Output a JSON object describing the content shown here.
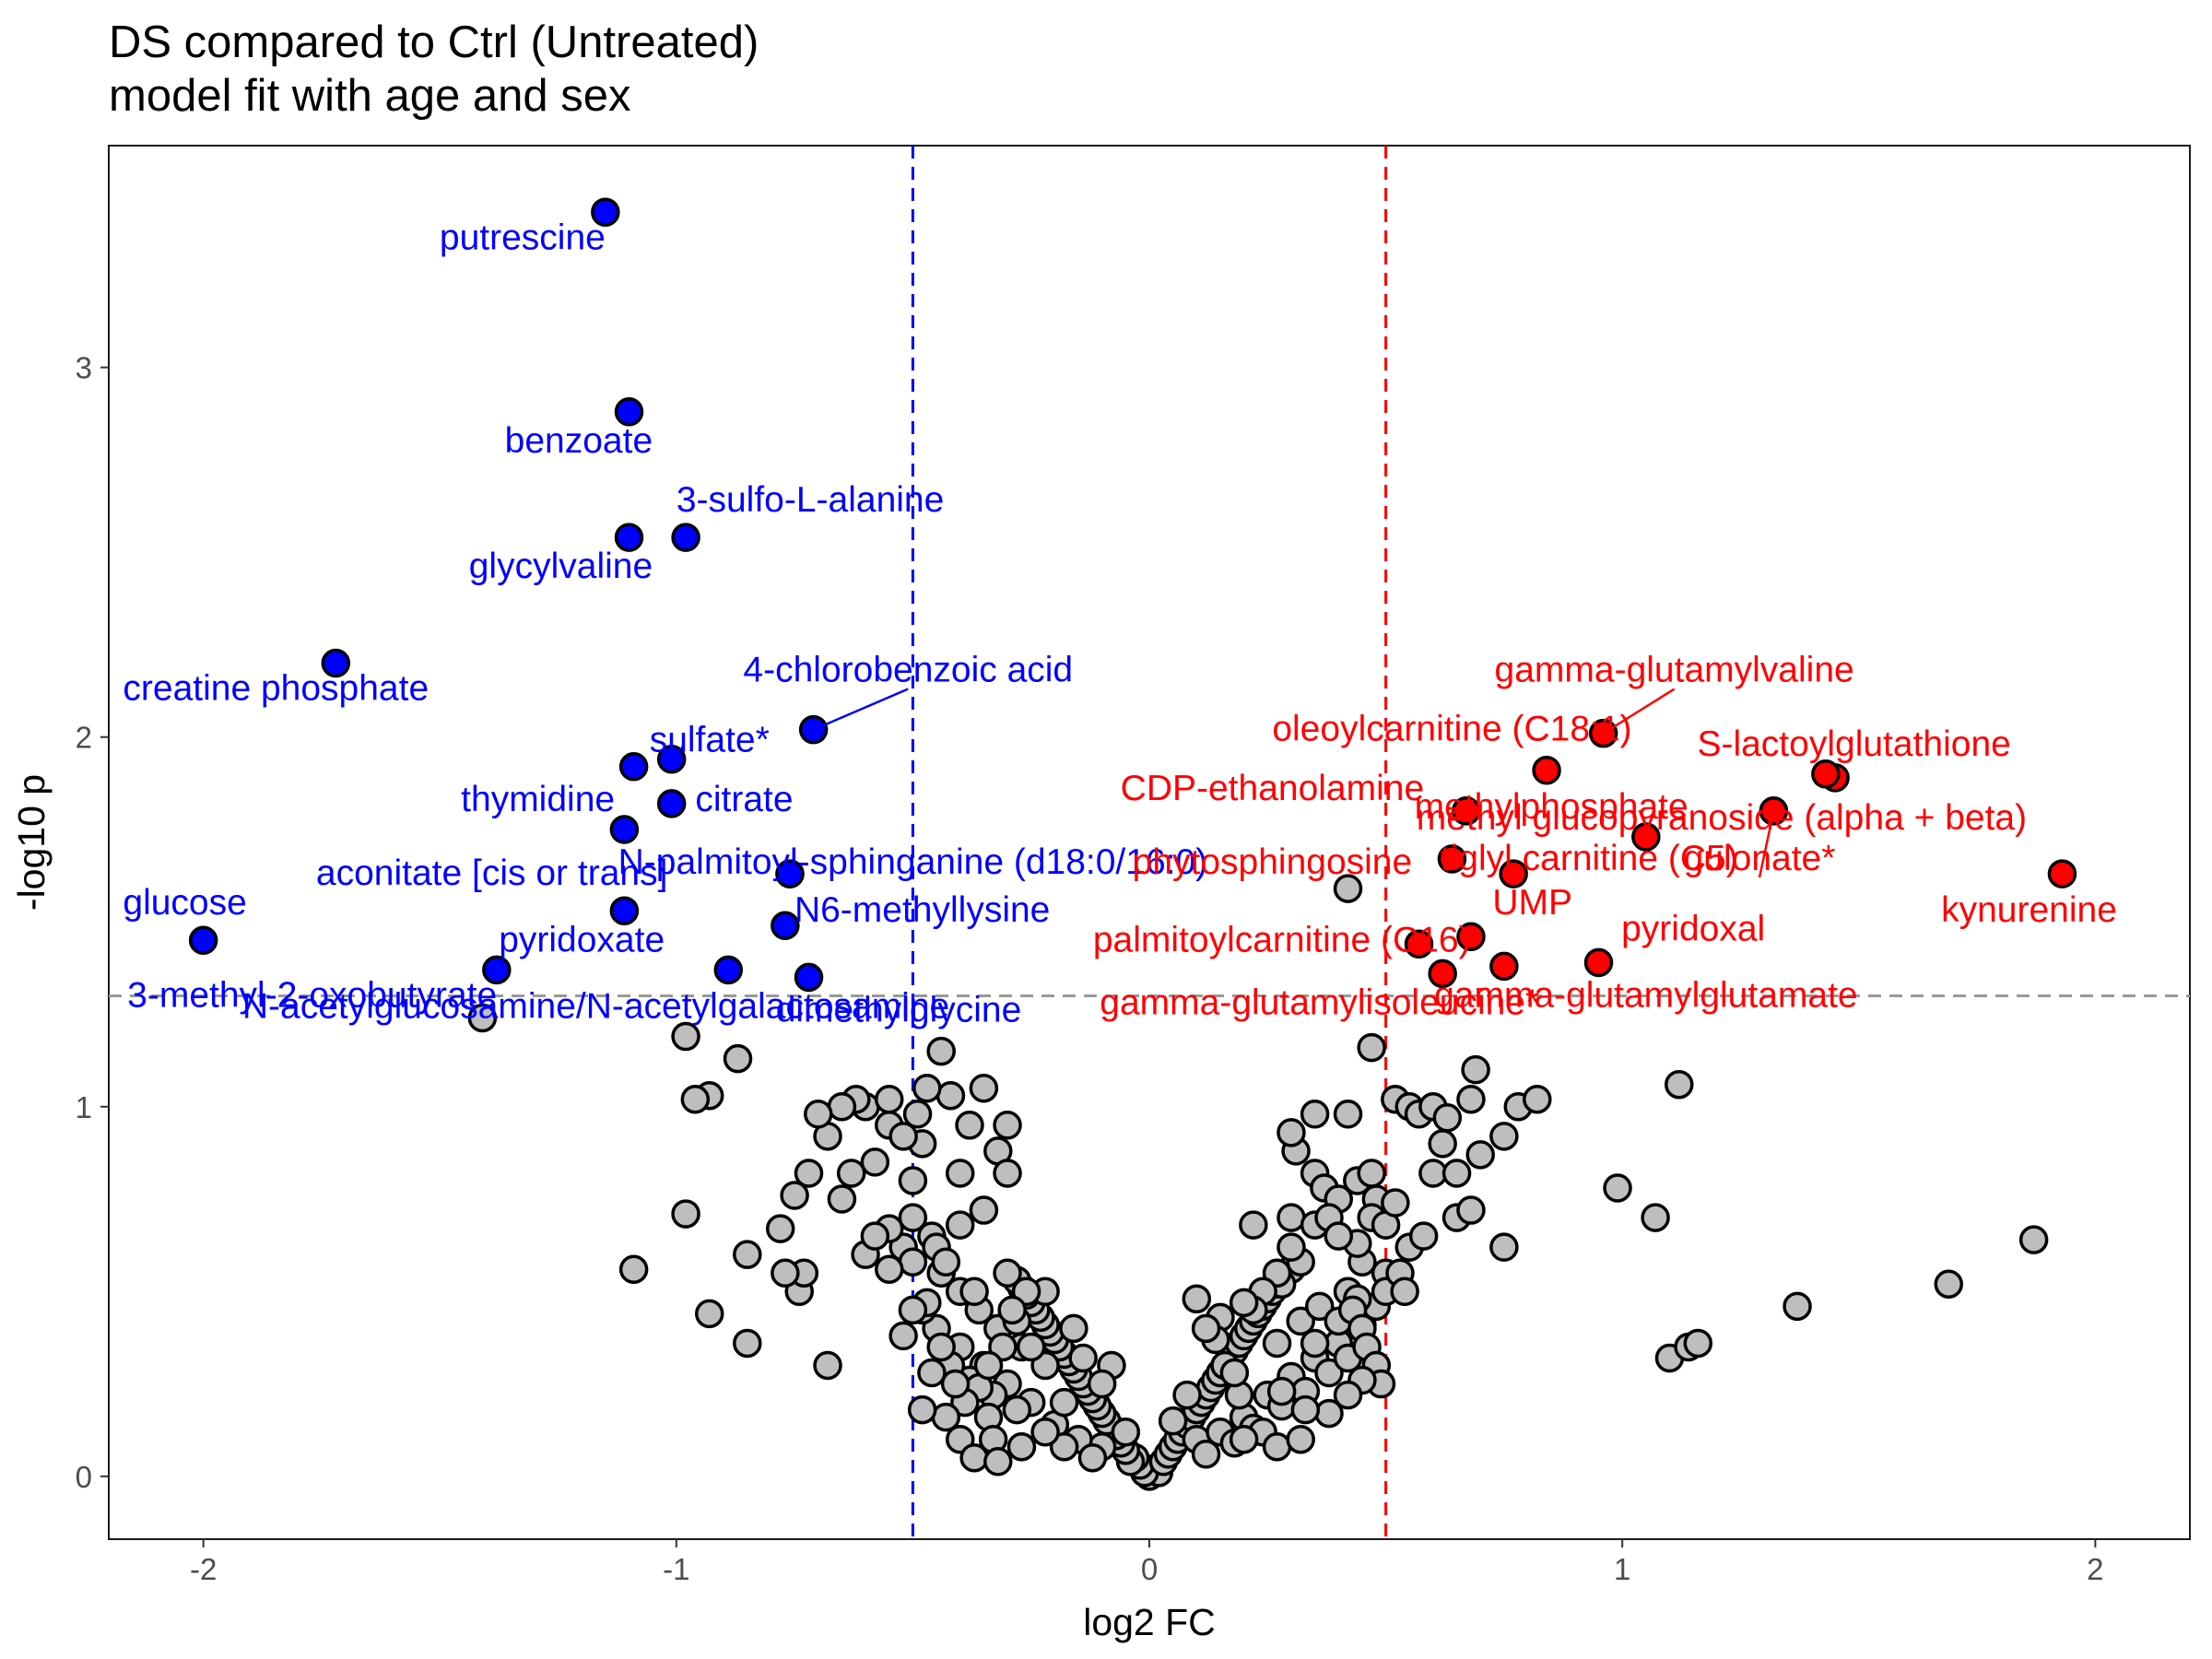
{
  "chart_data": {
    "type": "scatter",
    "title": "DS compared to Ctrl (Untreated)",
    "subtitle": "model fit with age and sex",
    "xlabel": "log2 FC",
    "ylabel": "-log10 p",
    "xlim": [
      -2.2,
      2.2
    ],
    "ylim": [
      -0.17,
      3.6
    ],
    "x_ticks": [
      -2,
      -1,
      0,
      1,
      2
    ],
    "y_ticks": [
      0,
      1,
      2,
      3
    ],
    "x_tick_labels": [
      "-2",
      "-1",
      "0",
      "1",
      "2"
    ],
    "y_tick_labels": [
      "0",
      "1",
      "2",
      "3"
    ],
    "thresholds": {
      "p_line": 1.3,
      "fc_low": -0.5,
      "fc_high": 0.5
    },
    "colors": {
      "down": "#0000ff",
      "up": "#ff0000",
      "ns": "#bebebe",
      "stroke": "#000000",
      "p_line": "#999999"
    },
    "grid": false,
    "legend": "none",
    "down_points": [
      {
        "label": "putrescine",
        "x": -1.15,
        "y": 3.42,
        "lx": -1.15,
        "ly": 3.32,
        "anchor": "end"
      },
      {
        "label": "benzoate",
        "x": -1.1,
        "y": 2.88,
        "lx": -1.05,
        "ly": 2.77,
        "anchor": "end"
      },
      {
        "label": "3-sulfo-L-alanine",
        "x": -0.98,
        "y": 2.54,
        "lx": -1.0,
        "ly": 2.61,
        "anchor": "start"
      },
      {
        "label": "glycylvaline",
        "x": -1.1,
        "y": 2.54,
        "lx": -1.05,
        "ly": 2.43,
        "anchor": "end"
      },
      {
        "label": "creatine phosphate",
        "x": -1.72,
        "y": 2.2,
        "lx": -2.17,
        "ly": 2.1,
        "anchor": "start"
      },
      {
        "label": "4-chlorobenzoic acid",
        "x": -0.71,
        "y": 2.02,
        "lx": -0.51,
        "ly": 2.15,
        "anchor": "middle",
        "seg": true
      },
      {
        "label": "sulfate*",
        "x": -1.01,
        "y": 1.94,
        "lx": -0.93,
        "ly": 1.96,
        "anchor": "middle"
      },
      {
        "label": "thymidine",
        "x": -1.09,
        "y": 1.92,
        "lx": -1.13,
        "ly": 1.8,
        "anchor": "end"
      },
      {
        "label": "citrate",
        "x": -1.01,
        "y": 1.82,
        "lx": -0.96,
        "ly": 1.8,
        "anchor": "start"
      },
      {
        "label": "aconitate [cis or trans]",
        "x": -1.11,
        "y": 1.75,
        "lx": -1.39,
        "ly": 1.6,
        "anchor": "middle"
      },
      {
        "label": "N-palmitoyl-sphinganine (d18:0/16:0)",
        "x": -0.76,
        "y": 1.63,
        "lx": -0.5,
        "ly": 1.63,
        "anchor": "middle"
      },
      {
        "label": "N6-methyllysine",
        "x": -0.77,
        "y": 1.49,
        "lx": -0.48,
        "ly": 1.5,
        "anchor": "middle"
      },
      {
        "label": "glucose",
        "x": -2.0,
        "y": 1.45,
        "lx": -2.17,
        "ly": 1.52,
        "anchor": "start"
      },
      {
        "label": "pyridoxate",
        "x": -1.11,
        "y": 1.53,
        "lx": -1.2,
        "ly": 1.42,
        "anchor": "middle"
      },
      {
        "label": "3-methyl-2-oxobutyrate",
        "x": -1.38,
        "y": 1.37,
        "lx": -1.77,
        "ly": 1.27,
        "anchor": "middle"
      },
      {
        "label": "N-acetylglucosamine/N-acetylgalactosamine",
        "x": -0.89,
        "y": 1.37,
        "lx": -1.17,
        "ly": 1.24,
        "anchor": "middle"
      },
      {
        "label": "dimethylglycine",
        "x": -0.72,
        "y": 1.35,
        "lx": -0.53,
        "ly": 1.23,
        "anchor": "middle"
      }
    ],
    "up_points": [
      {
        "label": "gamma-glutamylvaline",
        "x": 0.96,
        "y": 2.01,
        "lx": 1.11,
        "ly": 2.15,
        "anchor": "middle",
        "seg": true
      },
      {
        "label": "oleoylcarnitine (C18:1)",
        "x": 0.84,
        "y": 1.91,
        "lx": 0.64,
        "ly": 1.99,
        "anchor": "middle"
      },
      {
        "label": "S-lactoylglutathione",
        "x": 1.43,
        "y": 1.9,
        "lx": 1.49,
        "ly": 1.95,
        "anchor": "middle"
      },
      {
        "label": "CDP-ethanolamine",
        "x": 0.67,
        "y": 1.8,
        "lx": 0.26,
        "ly": 1.83,
        "anchor": "middle"
      },
      {
        "label": "methylphosphate",
        "x": 0.67,
        "y": 1.8,
        "lx": 0.85,
        "ly": 1.78,
        "anchor": "middle"
      },
      {
        "label": "methyl glucopyranoside (alpha + beta)",
        "x": 1.32,
        "y": 1.8,
        "lx": 1.21,
        "ly": 1.75,
        "anchor": "middle"
      },
      {
        "label": "tiglyl carnitine (C5)",
        "x": 1.05,
        "y": 1.73,
        "lx": 0.93,
        "ly": 1.64,
        "anchor": "middle"
      },
      {
        "label": "gulonate*",
        "x": 1.32,
        "y": 1.8,
        "lx": 1.29,
        "ly": 1.64,
        "anchor": "middle",
        "seg": true
      },
      {
        "label": "phytosphingosine",
        "x": 0.64,
        "y": 1.67,
        "lx": 0.26,
        "ly": 1.63,
        "anchor": "middle"
      },
      {
        "label": "kynurenine",
        "x": 1.93,
        "y": 1.63,
        "lx": 1.86,
        "ly": 1.5,
        "anchor": "middle"
      },
      {
        "label": "UMP",
        "x": 0.68,
        "y": 1.46,
        "lx": 0.81,
        "ly": 1.52,
        "anchor": "middle"
      },
      {
        "label": "pyridoxal",
        "x": 0.95,
        "y": 1.39,
        "lx": 1.15,
        "ly": 1.45,
        "anchor": "middle"
      },
      {
        "label": "palmitoylcarnitine (C16)",
        "x": 0.57,
        "y": 1.44,
        "lx": 0.28,
        "ly": 1.42,
        "anchor": "middle"
      },
      {
        "label": "gamma-glutamylisoleucine*",
        "x": 0.62,
        "y": 1.36,
        "lx": 0.36,
        "ly": 1.25,
        "anchor": "middle"
      },
      {
        "label": "gamma-glutamylglutamate",
        "x": 0.75,
        "y": 1.38,
        "lx": 1.05,
        "ly": 1.27,
        "anchor": "middle"
      }
    ],
    "extra_colored_points": [
      {
        "series": "down",
        "x": -0.76,
        "y": 1.63
      },
      {
        "series": "up",
        "x": 1.45,
        "y": 1.89
      },
      {
        "series": "up",
        "x": 0.77,
        "y": 1.63
      }
    ],
    "ns_points": [
      [
        0.0,
        0.0
      ],
      [
        0.01,
        0.02
      ],
      [
        0.02,
        0.01
      ],
      [
        -0.01,
        0.01
      ],
      [
        -0.02,
        0.03
      ],
      [
        0.03,
        0.04
      ],
      [
        -0.03,
        0.05
      ],
      [
        0.04,
        0.06
      ],
      [
        -0.04,
        0.04
      ],
      [
        0.05,
        0.08
      ],
      [
        -0.05,
        0.07
      ],
      [
        0.06,
        0.1
      ],
      [
        -0.06,
        0.09
      ],
      [
        0.07,
        0.12
      ],
      [
        -0.07,
        0.11
      ],
      [
        0.08,
        0.14
      ],
      [
        -0.08,
        0.13
      ],
      [
        0.09,
        0.16
      ],
      [
        -0.09,
        0.15
      ],
      [
        0.1,
        0.18
      ],
      [
        -0.1,
        0.17
      ],
      [
        0.11,
        0.2
      ],
      [
        -0.11,
        0.19
      ],
      [
        0.12,
        0.22
      ],
      [
        -0.12,
        0.21
      ],
      [
        0.13,
        0.24
      ],
      [
        -0.13,
        0.23
      ],
      [
        0.14,
        0.26
      ],
      [
        -0.14,
        0.25
      ],
      [
        0.15,
        0.28
      ],
      [
        -0.15,
        0.27
      ],
      [
        0.16,
        0.3
      ],
      [
        -0.16,
        0.29
      ],
      [
        0.17,
        0.32
      ],
      [
        -0.17,
        0.31
      ],
      [
        0.18,
        0.34
      ],
      [
        -0.18,
        0.33
      ],
      [
        0.19,
        0.36
      ],
      [
        -0.19,
        0.35
      ],
      [
        0.2,
        0.38
      ],
      [
        -0.2,
        0.37
      ],
      [
        0.21,
        0.4
      ],
      [
        -0.21,
        0.39
      ],
      [
        0.22,
        0.42
      ],
      [
        -0.22,
        0.41
      ],
      [
        0.23,
        0.44
      ],
      [
        -0.23,
        0.43
      ],
      [
        0.24,
        0.46
      ],
      [
        -0.24,
        0.45
      ],
      [
        0.25,
        0.48
      ],
      [
        -0.25,
        0.47
      ],
      [
        0.26,
        0.5
      ],
      [
        -0.26,
        0.49
      ],
      [
        0.27,
        0.52
      ],
      [
        -0.27,
        0.51
      ],
      [
        0.28,
        0.54
      ],
      [
        -0.28,
        0.53
      ],
      [
        0.3,
        0.56
      ],
      [
        -0.3,
        0.55
      ],
      [
        0.32,
        0.58
      ],
      [
        -0.05,
        0.12
      ],
      [
        -0.1,
        0.08
      ],
      [
        -0.15,
        0.1
      ],
      [
        -0.2,
        0.14
      ],
      [
        -0.25,
        0.2
      ],
      [
        -0.3,
        0.25
      ],
      [
        -0.35,
        0.3
      ],
      [
        -0.4,
        0.35
      ],
      [
        -0.45,
        0.4
      ],
      [
        -0.48,
        0.45
      ],
      [
        0.05,
        0.15
      ],
      [
        0.1,
        0.1
      ],
      [
        0.15,
        0.12
      ],
      [
        0.2,
        0.16
      ],
      [
        0.25,
        0.22
      ],
      [
        0.3,
        0.27
      ],
      [
        0.35,
        0.32
      ],
      [
        0.4,
        0.36
      ],
      [
        0.45,
        0.41
      ],
      [
        0.48,
        0.46
      ],
      [
        -0.12,
        0.05
      ],
      [
        -0.18,
        0.08
      ],
      [
        -0.22,
        0.12
      ],
      [
        -0.28,
        0.18
      ],
      [
        -0.33,
        0.22
      ],
      [
        -0.38,
        0.26
      ],
      [
        -0.42,
        0.3
      ],
      [
        -0.32,
        0.4
      ],
      [
        -0.36,
        0.45
      ],
      [
        -0.27,
        0.35
      ],
      [
        0.12,
        0.06
      ],
      [
        0.18,
        0.09
      ],
      [
        0.22,
        0.13
      ],
      [
        0.28,
        0.19
      ],
      [
        0.33,
        0.23
      ],
      [
        0.38,
        0.28
      ],
      [
        0.42,
        0.32
      ],
      [
        0.32,
        0.42
      ],
      [
        0.36,
        0.46
      ],
      [
        0.27,
        0.36
      ],
      [
        -0.44,
        0.55
      ],
      [
        -0.46,
        0.65
      ],
      [
        -0.5,
        0.7
      ],
      [
        -0.52,
        0.62
      ],
      [
        -0.55,
        0.67
      ],
      [
        -0.5,
        0.8
      ],
      [
        -0.48,
        0.9
      ],
      [
        -0.55,
        0.95
      ],
      [
        -0.58,
        0.85
      ],
      [
        -0.6,
        1.0
      ],
      [
        -0.62,
        1.02
      ],
      [
        -0.63,
        0.82
      ],
      [
        -0.65,
        0.75
      ],
      [
        -0.5,
        0.58
      ],
      [
        -0.45,
        0.62
      ],
      [
        -0.4,
        0.68
      ],
      [
        -0.4,
        0.82
      ],
      [
        -0.38,
        0.95
      ],
      [
        -0.35,
        1.05
      ],
      [
        -0.35,
        0.72
      ],
      [
        -0.32,
        0.88
      ],
      [
        -0.3,
        0.95
      ],
      [
        -0.3,
        0.82
      ],
      [
        -0.44,
        1.15
      ],
      [
        -0.42,
        1.03
      ],
      [
        -0.4,
        0.5
      ],
      [
        -0.43,
        0.58
      ],
      [
        -0.47,
        0.47
      ],
      [
        -0.5,
        0.45
      ],
      [
        -0.52,
        0.38
      ],
      [
        -0.55,
        1.02
      ],
      [
        -0.65,
        1.0
      ],
      [
        -0.68,
        0.92
      ],
      [
        -0.72,
        0.82
      ],
      [
        -0.75,
        0.76
      ],
      [
        -0.7,
        0.98
      ],
      [
        -0.74,
        0.5
      ],
      [
        -0.73,
        0.55
      ],
      [
        -0.77,
        0.55
      ],
      [
        -0.78,
        0.67
      ],
      [
        -0.85,
        0.6
      ],
      [
        -0.85,
        0.36
      ],
      [
        -0.93,
        0.44
      ],
      [
        -0.68,
        0.3
      ],
      [
        -0.87,
        1.13
      ],
      [
        -0.98,
        1.19
      ],
      [
        -0.93,
        1.03
      ],
      [
        -0.96,
        1.02
      ],
      [
        -0.98,
        0.71
      ],
      [
        -1.09,
        0.56
      ],
      [
        -1.41,
        1.24
      ],
      [
        -0.55,
        0.56
      ],
      [
        -0.6,
        0.6
      ],
      [
        -0.58,
        0.65
      ],
      [
        -0.52,
        0.92
      ],
      [
        -0.49,
        0.98
      ],
      [
        -0.47,
        1.05
      ],
      [
        -0.36,
        0.24
      ],
      [
        -0.34,
        0.16
      ],
      [
        -0.33,
        0.1
      ],
      [
        0.42,
        1.59
      ],
      [
        0.47,
        1.16
      ],
      [
        0.42,
        0.98
      ],
      [
        0.35,
        0.98
      ],
      [
        0.31,
        0.88
      ],
      [
        0.3,
        0.93
      ],
      [
        0.35,
        0.82
      ],
      [
        0.37,
        0.78
      ],
      [
        0.4,
        0.75
      ],
      [
        0.44,
        0.8
      ],
      [
        0.47,
        0.82
      ],
      [
        0.48,
        0.75
      ],
      [
        0.47,
        0.7
      ],
      [
        0.5,
        0.68
      ],
      [
        0.52,
        0.74
      ],
      [
        0.55,
        0.62
      ],
      [
        0.5,
        0.55
      ],
      [
        0.5,
        0.5
      ],
      [
        0.45,
        0.58
      ],
      [
        0.44,
        0.63
      ],
      [
        0.42,
        0.5
      ],
      [
        0.4,
        0.42
      ],
      [
        0.35,
        0.36
      ],
      [
        0.3,
        0.62
      ],
      [
        0.28,
        0.52
      ],
      [
        0.27,
        0.55
      ],
      [
        0.24,
        0.5
      ],
      [
        0.22,
        0.45
      ],
      [
        0.2,
        0.47
      ],
      [
        0.15,
        0.43
      ],
      [
        0.14,
        0.37
      ],
      [
        0.22,
        0.68
      ],
      [
        0.3,
        0.7
      ],
      [
        0.35,
        0.68
      ],
      [
        0.38,
        0.7
      ],
      [
        0.4,
        0.65
      ],
      [
        0.44,
        0.48
      ],
      [
        0.43,
        0.45
      ],
      [
        0.45,
        0.4
      ],
      [
        0.46,
        0.35
      ],
      [
        0.48,
        0.3
      ],
      [
        0.49,
        0.25
      ],
      [
        0.45,
        0.26
      ],
      [
        0.42,
        0.22
      ],
      [
        0.38,
        0.17
      ],
      [
        0.33,
        0.18
      ],
      [
        0.28,
        0.23
      ],
      [
        0.24,
        0.12
      ],
      [
        0.2,
        0.1
      ],
      [
        0.19,
        0.22
      ],
      [
        0.52,
        1.02
      ],
      [
        0.55,
        1.0
      ],
      [
        0.57,
        0.98
      ],
      [
        0.6,
        1.0
      ],
      [
        0.63,
        0.97
      ],
      [
        0.62,
        0.9
      ],
      [
        0.6,
        0.82
      ],
      [
        0.65,
        0.82
      ],
      [
        0.7,
        0.87
      ],
      [
        0.75,
        0.92
      ],
      [
        0.78,
        1.0
      ],
      [
        0.82,
        1.02
      ],
      [
        0.68,
        1.02
      ],
      [
        0.69,
        1.1
      ],
      [
        0.65,
        0.7
      ],
      [
        0.68,
        0.72
      ],
      [
        0.75,
        0.62
      ],
      [
        0.58,
        0.65
      ],
      [
        0.53,
        0.55
      ],
      [
        0.54,
        0.5
      ],
      [
        1.12,
        1.06
      ],
      [
        0.99,
        0.78
      ],
      [
        1.07,
        0.7
      ],
      [
        1.37,
        0.46
      ],
      [
        1.69,
        0.52
      ],
      [
        1.87,
        0.64
      ],
      [
        1.1,
        0.32
      ],
      [
        1.14,
        0.35
      ],
      [
        1.16,
        0.36
      ],
      [
        0.1,
        0.48
      ],
      [
        0.12,
        0.4
      ],
      [
        0.16,
        0.3
      ],
      [
        0.18,
        0.28
      ],
      [
        0.08,
        0.22
      ],
      [
        -0.08,
        0.3
      ],
      [
        -0.1,
        0.25
      ],
      [
        -0.14,
        0.32
      ],
      [
        -0.16,
        0.4
      ],
      [
        -0.18,
        0.2
      ],
      [
        -0.22,
        0.3
      ],
      [
        -0.25,
        0.35
      ],
      [
        -0.28,
        0.42
      ],
      [
        -0.22,
        0.5
      ],
      [
        -0.26,
        0.5
      ],
      [
        -0.29,
        0.45
      ],
      [
        -0.31,
        0.35
      ],
      [
        -0.34,
        0.3
      ],
      [
        -0.37,
        0.5
      ],
      [
        -0.39,
        0.2
      ],
      [
        -0.41,
        0.25
      ],
      [
        -0.43,
        0.16
      ],
      [
        -0.4,
        0.1
      ],
      [
        -0.37,
        0.05
      ],
      [
        -0.32,
        0.04
      ],
      [
        -0.27,
        0.08
      ],
      [
        -0.44,
        0.35
      ],
      [
        -0.46,
        0.28
      ],
      [
        -0.48,
        0.18
      ],
      [
        0.27,
        0.08
      ],
      [
        0.32,
        0.1
      ]
    ]
  }
}
